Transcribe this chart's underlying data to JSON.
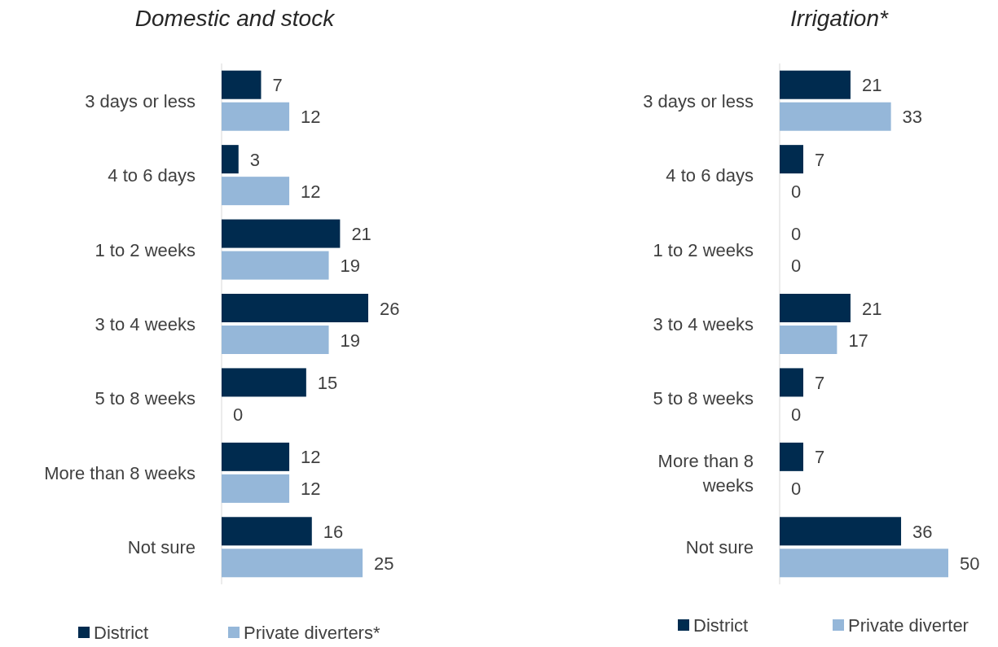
{
  "chart_data": [
    {
      "type": "bar",
      "orientation": "horizontal",
      "title": "Domestic and stock",
      "categories": [
        "3 days or less",
        "4 to 6 days",
        "1 to 2 weeks",
        "3 to 4 weeks",
        "5 to 8 weeks",
        "More than 8 weeks",
        "Not sure"
      ],
      "tick_labels": "y",
      "data_labels": true,
      "legend": "bottom",
      "series": [
        {
          "name": "District",
          "color": "#002b4f",
          "values": [
            7,
            3,
            21,
            26,
            15,
            12,
            16
          ]
        },
        {
          "name": "Private diverters*",
          "color": "#95b7d9",
          "values": [
            12,
            12,
            19,
            19,
            0,
            12,
            25
          ]
        }
      ]
    },
    {
      "type": "bar",
      "orientation": "horizontal",
      "title": "Irrigation*",
      "categories": [
        "3 days or less",
        "4 to 6 days",
        "1 to 2 weeks",
        "3 to 4 weeks",
        "5 to 8 weeks",
        "More than 8 weeks",
        "Not sure"
      ],
      "tick_labels": "y",
      "data_labels": true,
      "legend": "bottom",
      "series": [
        {
          "name": "District",
          "color": "#002b4f",
          "values": [
            21,
            7,
            0,
            21,
            7,
            7,
            36
          ]
        },
        {
          "name": "Private diverter",
          "color": "#95b7d9",
          "values": [
            33,
            0,
            0,
            17,
            0,
            0,
            50
          ]
        }
      ]
    }
  ]
}
